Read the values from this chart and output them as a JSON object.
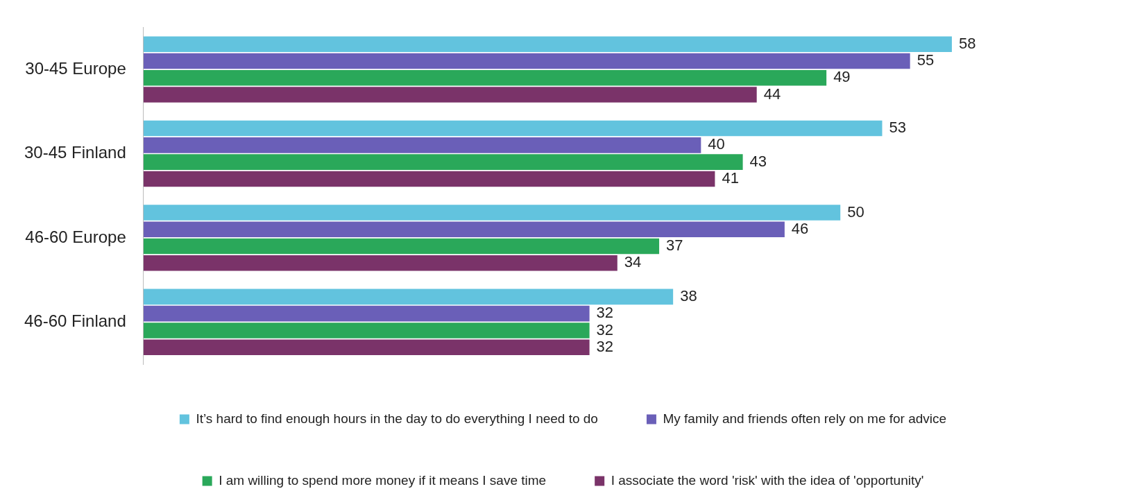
{
  "chart_data": {
    "type": "bar",
    "orientation": "horizontal",
    "categories": [
      "30-45 Europe",
      "30-45 Finland",
      "46-60 Europe",
      "46-60 Finland"
    ],
    "series": [
      {
        "name": "It’s hard to find enough hours in the day to do everything I need to do",
        "color": "#62c3de",
        "values": [
          58,
          53,
          50,
          38
        ]
      },
      {
        "name": "My family and friends often rely on me for advice",
        "color": "#6a5fb8",
        "values": [
          55,
          40,
          46,
          32
        ]
      },
      {
        "name": "I am willing to spend more money if it means I save time",
        "color": "#2aa85a",
        "values": [
          49,
          43,
          37,
          32
        ]
      },
      {
        "name": "I associate the word 'risk' with the idea of 'opportunity'",
        "color": "#7a3369",
        "values": [
          44,
          41,
          34,
          32
        ]
      }
    ],
    "data_labels": true,
    "legend": "bottom"
  }
}
